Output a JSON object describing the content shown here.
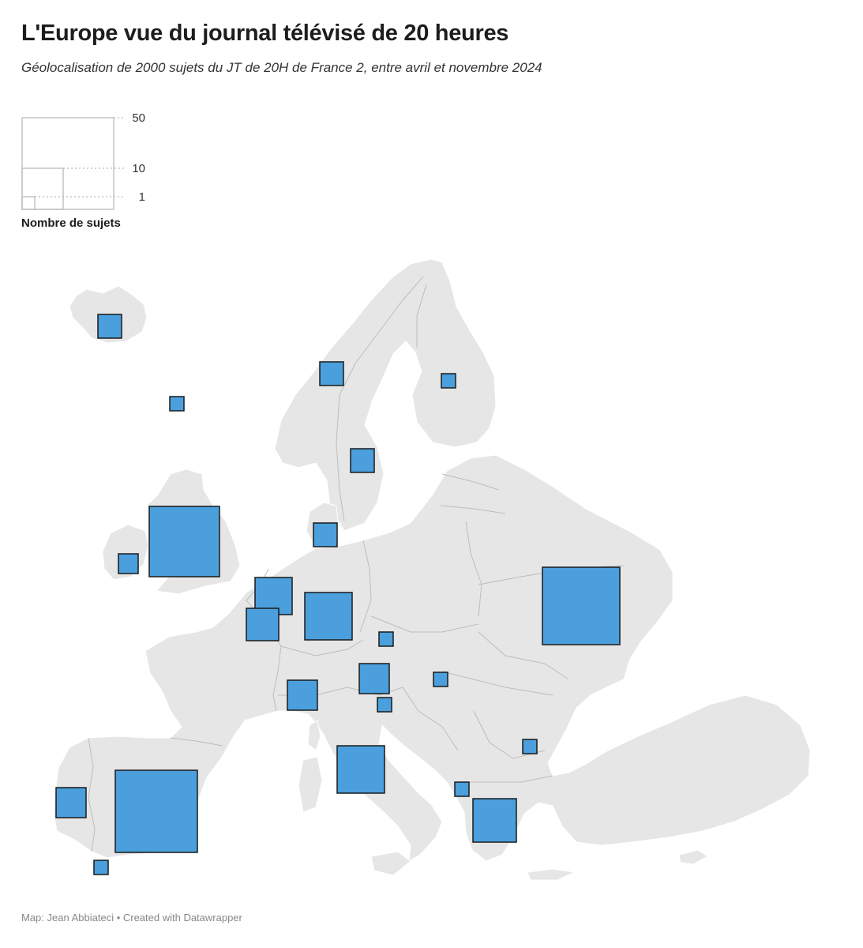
{
  "header": {
    "title": "L'Europe vue du journal télévisé de 20 heures",
    "subtitle": "Géolocalisation de 2000 sujets du JT de 20H de France 2, entre avril et novembre 2024"
  },
  "legend": {
    "title": "Nombre de sujets",
    "levels": [
      {
        "label": "50",
        "value": 50
      },
      {
        "label": "10",
        "value": 10
      },
      {
        "label": "1",
        "value": 1
      }
    ]
  },
  "colors": {
    "land": "#e6e6e6",
    "borders": "#bdbdbd",
    "marker_fill": "#4a9fdc",
    "marker_stroke": "#1a1a1a"
  },
  "markers": [
    {
      "name": "Islande",
      "size": "small"
    },
    {
      "name": "Îles Féroé",
      "size": "tiny"
    },
    {
      "name": "Norvège",
      "size": "small"
    },
    {
      "name": "Finlande",
      "size": "tiny"
    },
    {
      "name": "Suède",
      "size": "small"
    },
    {
      "name": "Danemark",
      "size": "small"
    },
    {
      "name": "Royaume-Uni",
      "size": "large"
    },
    {
      "name": "Irlande",
      "size": "small"
    },
    {
      "name": "Pays-Bas",
      "size": "medium"
    },
    {
      "name": "Belgique",
      "size": "medium"
    },
    {
      "name": "Allemagne",
      "size": "medium"
    },
    {
      "name": "République tchèque",
      "size": "tiny"
    },
    {
      "name": "Ukraine",
      "size": "large"
    },
    {
      "name": "Autriche",
      "size": "medium"
    },
    {
      "name": "Hongrie",
      "size": "tiny"
    },
    {
      "name": "Slovénie",
      "size": "tiny"
    },
    {
      "name": "Suisse",
      "size": "medium"
    },
    {
      "name": "Italie",
      "size": "medium"
    },
    {
      "name": "Bulgarie",
      "size": "tiny"
    },
    {
      "name": "Albanie",
      "size": "tiny"
    },
    {
      "name": "Grèce",
      "size": "medium"
    },
    {
      "name": "Portugal",
      "size": "small"
    },
    {
      "name": "Espagne",
      "size": "large"
    },
    {
      "name": "Gibraltar",
      "size": "tiny"
    }
  ],
  "footer": {
    "credit": "Map: Jean Abbiateci • Created with Datawrapper"
  }
}
